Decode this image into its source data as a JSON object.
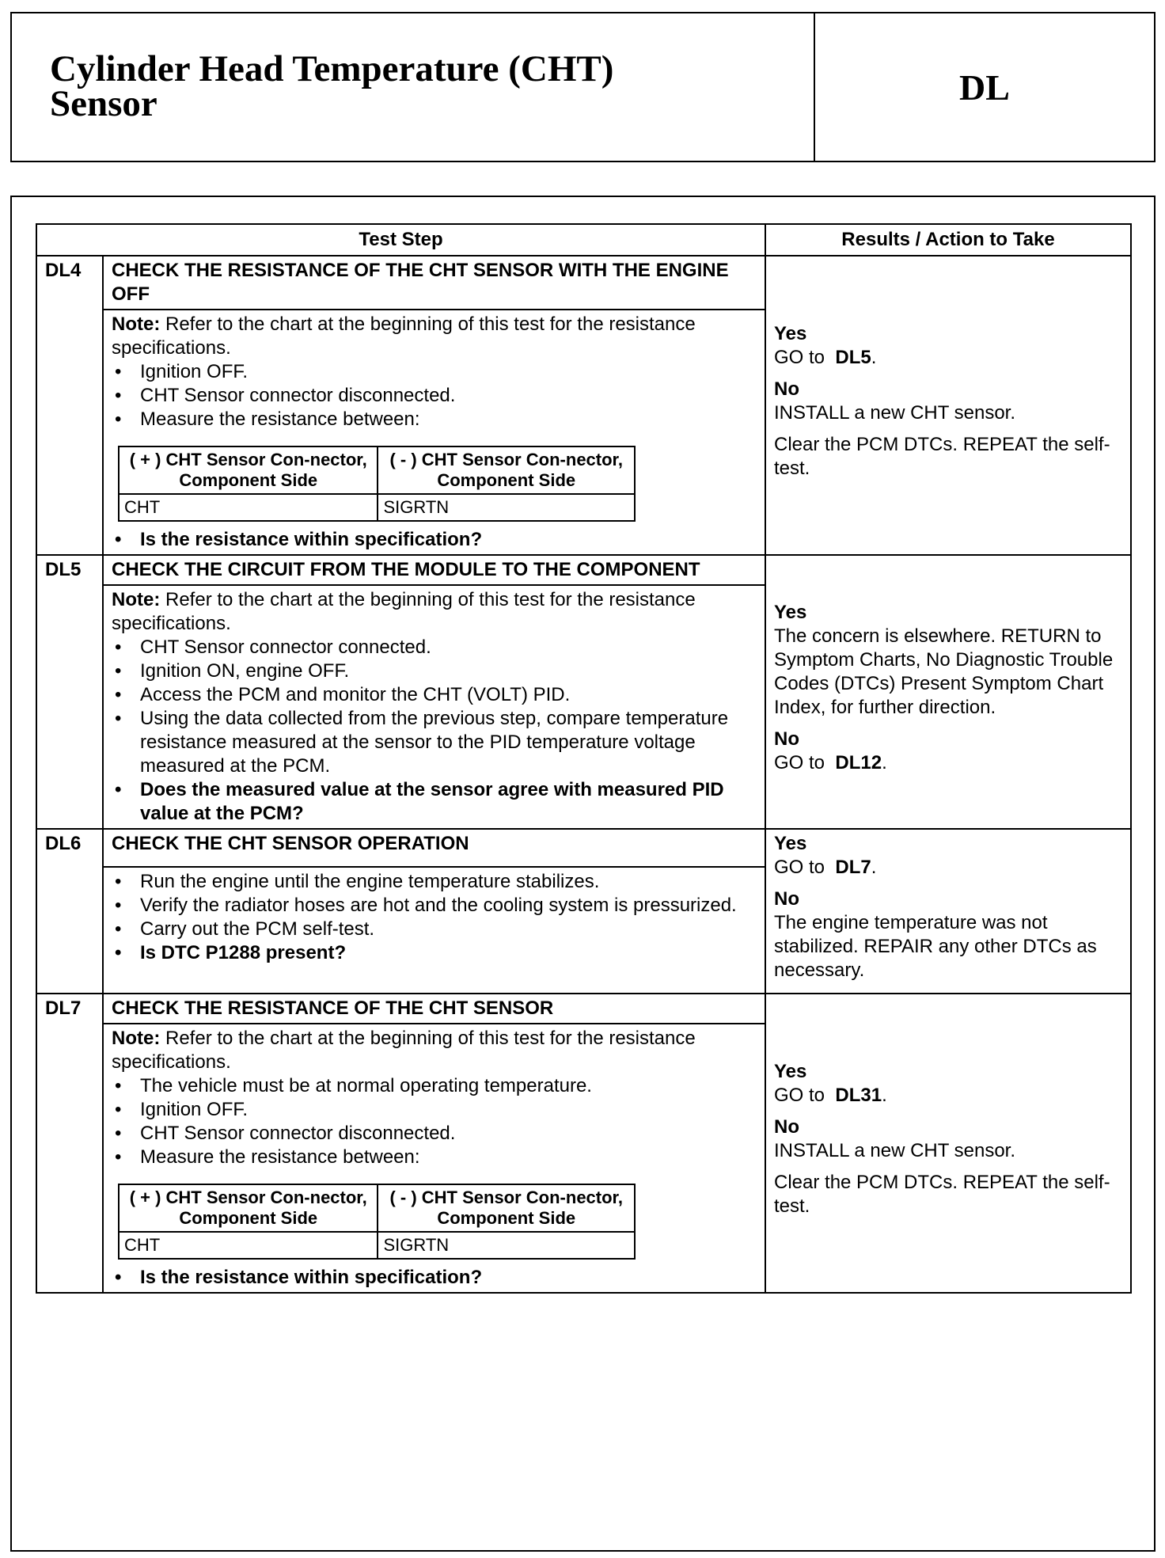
{
  "header": {
    "title": [
      "Cylinder Head Temperature (CHT)",
      "Sensor"
    ],
    "code": "DL"
  },
  "table": {
    "columns": [
      "Test Step",
      "Results / Action to Take"
    ],
    "steps": [
      {
        "id": "DL4",
        "heading": "CHECK THE RESISTANCE OF THE CHT SENSOR WITH THE ENGINE OFF",
        "note": {
          "label": "Note:",
          "text": "Refer to the chart at the beginning of this test for the resistance specifications."
        },
        "bullets": [
          "Ignition OFF.",
          "CHT Sensor connector disconnected.",
          "Measure the resistance between:"
        ],
        "measure": {
          "headers": [
            "( + ) CHT Sensor Con-nector, Component Side",
            "( - ) CHT Sensor Con-nector, Component Side"
          ],
          "row": [
            "CHT",
            "SIGRTN"
          ]
        },
        "question": "Is the resistance within specification?",
        "results": [
          {
            "label": "Yes",
            "paragraphs": [
              {
                "text": "GO to",
                "ref": "DL5",
                "end": "."
              }
            ]
          },
          {
            "label": "No",
            "paragraphs": [
              {
                "text": "INSTALL a new CHT sensor."
              },
              {
                "text": "Clear the PCM DTCs. REPEAT the self-test."
              }
            ]
          }
        ]
      },
      {
        "id": "DL5",
        "heading": "CHECK THE CIRCUIT FROM THE MODULE TO THE COMPONENT",
        "note": {
          "label": "Note:",
          "text": "Refer to the chart at the beginning of this test for the resistance specifications."
        },
        "bullets": [
          "CHT Sensor connector connected.",
          "Ignition ON, engine OFF.",
          "Access the PCM and monitor the CHT (VOLT) PID.",
          "Using the data collected from the previous step, compare temperature resistance measured at the sensor to the PID temperature voltage measured at the PCM."
        ],
        "question": "Does the measured value at the sensor agree with measured PID value at the PCM?",
        "results": [
          {
            "label": "Yes",
            "paragraphs": [
              {
                "text": "The concern is elsewhere. RETURN to Symptom Charts, No Diagnostic Trouble Codes (DTCs) Present Symptom Chart Index, for further direction."
              }
            ]
          },
          {
            "label": "No",
            "paragraphs": [
              {
                "text": "GO to",
                "ref": "DL12",
                "end": "."
              }
            ]
          }
        ]
      },
      {
        "id": "DL6",
        "heading": "CHECK THE CHT SENSOR OPERATION",
        "bullets": [
          "Run the engine until the engine temperature stabilizes.",
          "Verify the radiator hoses are hot and the cooling system is pressurized.",
          "Carry out the PCM self-test."
        ],
        "question": "Is DTC P1288  present?",
        "results": [
          {
            "label": "Yes",
            "paragraphs": [
              {
                "text": "GO to",
                "ref": "DL7",
                "end": "."
              }
            ]
          },
          {
            "label": "No",
            "paragraphs": [
              {
                "text": "The engine temperature was not stabilized. REPAIR any other DTCs as necessary."
              }
            ]
          }
        ]
      },
      {
        "id": "DL7",
        "heading": "CHECK THE RESISTANCE OF THE CHT SENSOR",
        "note": {
          "label": "Note:",
          "text": "Refer to the chart at the beginning of this test for the resistance specifications."
        },
        "bullets": [
          "The vehicle must be at normal operating temperature.",
          "Ignition OFF.",
          "CHT Sensor connector disconnected.",
          "Measure the resistance between:"
        ],
        "measure": {
          "headers": [
            "( + ) CHT Sensor Con-nector, Component Side",
            "( - ) CHT Sensor Con-nector, Component Side"
          ],
          "row": [
            "CHT",
            "SIGRTN"
          ]
        },
        "question": "Is the resistance within specification?",
        "results": [
          {
            "label": "Yes",
            "paragraphs": [
              {
                "text": "GO to",
                "ref": "DL31",
                "end": "."
              }
            ]
          },
          {
            "label": "No",
            "paragraphs": [
              {
                "text": "INSTALL a new CHT sensor."
              },
              {
                "text": "Clear the PCM DTCs. REPEAT the self-test."
              }
            ]
          }
        ]
      }
    ]
  }
}
